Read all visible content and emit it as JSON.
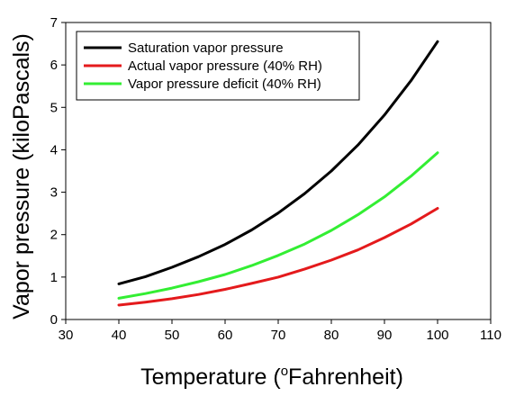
{
  "chart_data": {
    "type": "line",
    "title": "",
    "xlabel_prefix": "Temperature (",
    "xlabel_sup": "o",
    "xlabel_suffix": "Fahrenheit)",
    "ylabel": "Vapor pressure (kiloPascals)",
    "xlim": [
      30,
      110
    ],
    "ylim": [
      0,
      7
    ],
    "xticks": [
      30,
      40,
      50,
      60,
      70,
      80,
      90,
      100,
      110
    ],
    "yticks": [
      0,
      1,
      2,
      3,
      4,
      5,
      6,
      7
    ],
    "grid": false,
    "legend_position": "top-left",
    "x": [
      40,
      45,
      50,
      55,
      60,
      65,
      70,
      75,
      80,
      85,
      90,
      95,
      100
    ],
    "series": [
      {
        "name": "Saturation vapor pressure",
        "color": "#000000",
        "values": [
          0.84,
          1.01,
          1.23,
          1.48,
          1.77,
          2.11,
          2.51,
          2.97,
          3.5,
          4.11,
          4.82,
          5.63,
          6.55
        ]
      },
      {
        "name": "Actual vapor pressure (40% RH)",
        "color": "#e41a1c",
        "values": [
          0.34,
          0.41,
          0.49,
          0.59,
          0.71,
          0.85,
          1.0,
          1.19,
          1.4,
          1.64,
          1.93,
          2.25,
          2.62
        ]
      },
      {
        "name": "Vapor pressure deficit (40% RH)",
        "color": "#33ee33",
        "values": [
          0.5,
          0.61,
          0.74,
          0.89,
          1.06,
          1.27,
          1.51,
          1.78,
          2.1,
          2.47,
          2.89,
          3.38,
          3.93
        ]
      }
    ]
  }
}
